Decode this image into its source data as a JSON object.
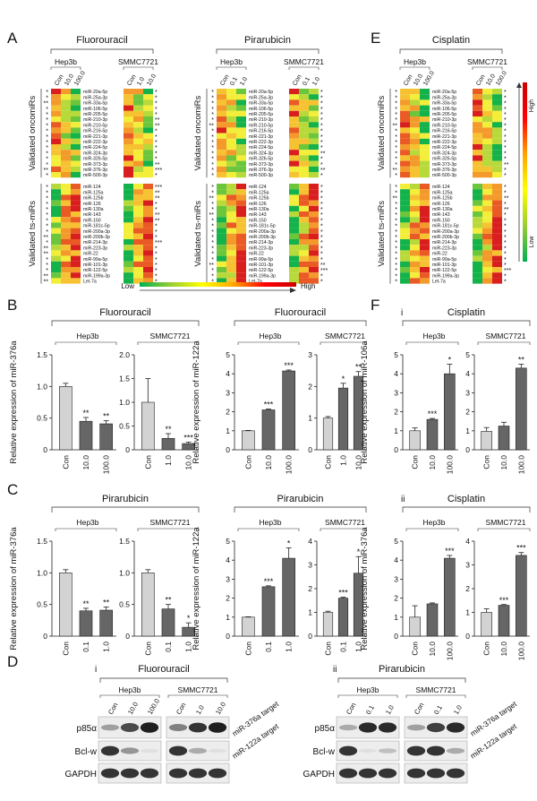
{
  "panels": {
    "A": "A",
    "B": "B",
    "C": "C",
    "D": "D",
    "E": "E",
    "F": "F"
  },
  "heatmap": {
    "row_group_labels": [
      "Validated oncomiRs",
      "Validated ts-miRs"
    ],
    "oncomirs": [
      "miR-20a-5p",
      "miR-25a-3p",
      "miR-33a-5p",
      "miR-106-5p",
      "miR-205-5p",
      "miR-210-3p",
      "miR-210-5p",
      "miR-216-5p",
      "miR-221-3p",
      "miR-222-3p",
      "miR-224-5p",
      "miR-324-3p",
      "miR-326-5p",
      "miR-373-3p",
      "miR-376-3p",
      "miR-500-3p"
    ],
    "tsmirs": [
      "miR-124",
      "miR-125a",
      "miR-125b",
      "miR-126",
      "miR-130a",
      "miR-143",
      "miR-150",
      "miR-181c-5p",
      "miR-200a-3p",
      "miR-200b-3p",
      "miR-214-3p",
      "miR-223-3p",
      "miR-22",
      "miR-99a-5p",
      "miR-101-3p",
      "miR-122-5p",
      "miR-199a-3p",
      "Let-7a"
    ],
    "legend": {
      "low": "Low",
      "high": "High",
      "gradient_colors": [
        "#00b050",
        "#9acd32",
        "#ffff00",
        "#ffa500",
        "#ff0000",
        "#cc0000"
      ]
    },
    "blocks": [
      {
        "id": "fluorouracil",
        "drug": "Fluorouracil",
        "lines": [
          {
            "name": "Hep3b",
            "conc": [
              "Con",
              "10.0",
              "100.0"
            ]
          },
          {
            "name": "SMMC7721",
            "conc": [
              "Con",
              "1.0",
              "10.0"
            ]
          }
        ],
        "onco_left": [
          "*",
          "*",
          "**",
          "*",
          "*",
          "*",
          "*",
          "*",
          "*",
          "*",
          "*",
          "*",
          "*",
          "*",
          "**",
          "*"
        ],
        "onco_right": [
          "*",
          "*",
          "*",
          "*",
          "*",
          "**",
          "**",
          "*",
          "*",
          "*",
          "*",
          "*",
          "*",
          "**",
          "***",
          "*"
        ],
        "ts_left": [
          "*",
          "*",
          "*",
          "*",
          "*",
          "*",
          "*",
          "*",
          "*",
          "**",
          "*",
          "**",
          "**",
          "*",
          "*",
          "*",
          "**",
          "**"
        ],
        "ts_right": [
          "***",
          "**",
          "**",
          "*",
          "*",
          "**",
          "**",
          "*",
          "*",
          "*",
          "***",
          "*",
          "*",
          "*",
          "*",
          "*",
          "*",
          "*"
        ]
      },
      {
        "id": "pirarubicin",
        "drug": "Pirarubicin",
        "lines": [
          {
            "name": "Hep3b",
            "conc": [
              "Con",
              "0.1",
              "1.0"
            ]
          },
          {
            "name": "SMMC7721",
            "conc": [
              "Con",
              "0.1",
              "1.0"
            ]
          }
        ],
        "onco_left": [
          "*",
          "*",
          "*",
          "*",
          "*",
          "*",
          "**",
          "*",
          "*",
          "*",
          "*",
          "*",
          "*",
          "*",
          "*",
          "*"
        ],
        "onco_right": [
          "*",
          "*",
          "*",
          "*",
          "*",
          "*",
          "*",
          "*",
          "*",
          "*",
          "*",
          "**",
          "*",
          "*",
          "**",
          "*"
        ],
        "ts_left": [
          "*",
          "*",
          "**",
          "*",
          "*",
          "**",
          "*",
          "*",
          "*",
          "*",
          "*",
          "*",
          "*",
          "*",
          "**",
          "*",
          "*",
          "*"
        ],
        "ts_right": [
          "*",
          "*",
          "*",
          "*",
          "*",
          "*",
          "*",
          "*",
          "*",
          "*",
          "*",
          "*",
          "*",
          "*",
          "**",
          "***",
          "*",
          "*"
        ]
      },
      {
        "id": "cisplatin",
        "drug": "Cisplatin",
        "lines": [
          {
            "name": "Hep3b",
            "conc": [
              "Con",
              "10.0",
              "100.0"
            ]
          },
          {
            "name": "SMMC7721",
            "conc": [
              "Con",
              "10.0",
              "100.0"
            ]
          }
        ],
        "onco_left": [
          "*",
          "*",
          "*",
          "*",
          "*",
          "*",
          "**",
          "*",
          "*",
          "*",
          "*",
          "*",
          "*",
          "*",
          "**",
          "*"
        ],
        "onco_right": [
          "*",
          "*",
          "*",
          "*",
          "*",
          "*",
          "*",
          "*",
          "*",
          "*",
          "*",
          "*",
          "*",
          "**",
          "*",
          "*"
        ],
        "ts_left": [
          "*",
          "*",
          "**",
          "*",
          "*",
          "*",
          "*",
          "*",
          "*",
          "*",
          "*",
          "*",
          "*",
          "*",
          "*",
          "*",
          "*",
          "*"
        ],
        "ts_right": [
          "*",
          "*",
          "**",
          "*",
          "**",
          "*",
          "*",
          "*",
          "*",
          "*",
          "*",
          "*",
          "*",
          "*",
          "*",
          "***",
          "*",
          "*"
        ]
      }
    ]
  },
  "chart_data": [
    {
      "type": "bar",
      "panel": "B",
      "title": "Fluorouracil",
      "ylabel": "Relative  expression of miR-376a",
      "groups": [
        {
          "name": "Hep3b",
          "categories": [
            "Con",
            "10.0",
            "100.0"
          ],
          "values": [
            1.0,
            0.45,
            0.41
          ],
          "errors": [
            0.05,
            0.06,
            0.05
          ],
          "sig": [
            "",
            "**",
            "**"
          ],
          "ylim": [
            0,
            1.5
          ],
          "ticks": [
            "0",
            "0.5",
            "1.0",
            "1.5"
          ]
        },
        {
          "name": "SMMC7721",
          "categories": [
            "Con",
            "1.0",
            "10.0"
          ],
          "values": [
            1.0,
            0.24,
            0.13
          ],
          "errors": [
            0.5,
            0.1,
            0.03
          ],
          "sig": [
            "",
            "**",
            "***"
          ],
          "ylim": [
            0,
            2.0
          ],
          "ticks": [
            "0",
            "0.5",
            "1.0",
            "1.5",
            "2.0"
          ]
        }
      ]
    },
    {
      "type": "bar",
      "panel": "B",
      "title": "Fluorouracil",
      "ylabel": "Relative  expression of miR-122a",
      "groups": [
        {
          "name": "Hep3b",
          "categories": [
            "Con",
            "10.0",
            "100.0"
          ],
          "values": [
            1.0,
            2.1,
            4.15
          ],
          "errors": [
            0.02,
            0.05,
            0.05
          ],
          "sig": [
            "",
            "***",
            "***"
          ],
          "ylim": [
            0,
            5
          ],
          "ticks": [
            "0",
            "1",
            "2",
            "3",
            "4",
            "5"
          ]
        },
        {
          "name": "SMMC7721",
          "categories": [
            "Con",
            "1.0",
            "10.0"
          ],
          "values": [
            1.0,
            1.95,
            2.32
          ],
          "errors": [
            0.05,
            0.15,
            0.15
          ],
          "sig": [
            "",
            "*",
            "**"
          ],
          "ylim": [
            0,
            3
          ],
          "ticks": [
            "0",
            "1",
            "2",
            "3"
          ]
        }
      ]
    },
    {
      "type": "bar",
      "panel": "C",
      "title": "Pirarubicin",
      "ylabel": "Relative  expression of miR-376a",
      "groups": [
        {
          "name": "Hep3b",
          "categories": [
            "Con",
            "0.1",
            "1.0"
          ],
          "values": [
            1.0,
            0.4,
            0.41
          ],
          "errors": [
            0.05,
            0.04,
            0.05
          ],
          "sig": [
            "",
            "**",
            "**"
          ],
          "ylim": [
            0,
            1.5
          ],
          "ticks": [
            "0",
            "0.5",
            "1.0",
            "1.5"
          ]
        },
        {
          "name": "SMMC7721",
          "categories": [
            "Con",
            "0.1",
            "1.0"
          ],
          "values": [
            1.0,
            0.43,
            0.14
          ],
          "errors": [
            0.05,
            0.07,
            0.07
          ],
          "sig": [
            "",
            "**",
            "*"
          ],
          "ylim": [
            0,
            1.5
          ],
          "ticks": [
            "0",
            "0.5",
            "1.0",
            "1.5"
          ]
        }
      ]
    },
    {
      "type": "bar",
      "panel": "C",
      "title": "Pirarubicin",
      "ylabel": "Relative  expression of miR-122a",
      "groups": [
        {
          "name": "Hep3b",
          "categories": [
            "Con",
            "0.1",
            "1.0"
          ],
          "values": [
            1.0,
            2.6,
            4.1
          ],
          "errors": [
            0.02,
            0.05,
            0.55
          ],
          "sig": [
            "",
            "***",
            "*"
          ],
          "ylim": [
            0,
            5
          ],
          "ticks": [
            "0",
            "1",
            "2",
            "3",
            "4",
            "5"
          ]
        },
        {
          "name": "SMMC7721",
          "categories": [
            "Con",
            "0.1",
            "1.0"
          ],
          "values": [
            1.0,
            1.6,
            2.65
          ],
          "errors": [
            0.05,
            0.04,
            0.7
          ],
          "sig": [
            "",
            "***",
            "*"
          ],
          "ylim": [
            0,
            4
          ],
          "ticks": [
            "0",
            "1",
            "2",
            "3",
            "4"
          ]
        }
      ]
    },
    {
      "type": "bar",
      "panel": "F",
      "sub": "i",
      "title": "Cisplatin",
      "ylabel": "Relative  expression of miR-106a",
      "groups": [
        {
          "name": "Hep3b",
          "categories": [
            "Con",
            "10.0",
            "100.0"
          ],
          "values": [
            1.0,
            1.6,
            4.0
          ],
          "errors": [
            0.15,
            0.05,
            0.5
          ],
          "sig": [
            "",
            "***",
            "*"
          ],
          "ylim": [
            0,
            5
          ],
          "ticks": [
            "0",
            "1",
            "2",
            "3",
            "4",
            "5"
          ]
        },
        {
          "name": "SMMC7721",
          "categories": [
            "Con",
            "10.0",
            "100.0"
          ],
          "values": [
            0.97,
            1.25,
            4.3
          ],
          "errors": [
            0.2,
            0.2,
            0.2
          ],
          "sig": [
            "",
            "",
            "**"
          ],
          "ylim": [
            0,
            5
          ],
          "ticks": [
            "0",
            "1",
            "2",
            "3",
            "4",
            "5"
          ]
        }
      ]
    },
    {
      "type": "bar",
      "panel": "F",
      "sub": "ii",
      "title": "Cisplatin",
      "ylabel": "Relative  expression of miR-376a",
      "groups": [
        {
          "name": "Hep3b",
          "categories": [
            "Con",
            "10.0",
            "100.0"
          ],
          "values": [
            1.0,
            1.7,
            4.1
          ],
          "errors": [
            0.6,
            0.05,
            0.15
          ],
          "sig": [
            "",
            "",
            "***"
          ],
          "ylim": [
            0,
            5
          ],
          "ticks": [
            "0",
            "1",
            "2",
            "3",
            "4",
            "5"
          ]
        },
        {
          "name": "SMMC7721",
          "categories": [
            "Con",
            "10.0",
            "100.0"
          ],
          "values": [
            1.0,
            1.3,
            3.4
          ],
          "errors": [
            0.15,
            0.03,
            0.12
          ],
          "sig": [
            "",
            "***",
            "***"
          ],
          "ylim": [
            0,
            4
          ],
          "ticks": [
            "0",
            "1",
            "2",
            "3",
            "4"
          ]
        }
      ]
    }
  ],
  "western": [
    {
      "sub": "i",
      "drug": "Fluorouracil",
      "lines": [
        {
          "name": "Hep3b",
          "conc": [
            "Con",
            "10.0",
            "100.0"
          ]
        },
        {
          "name": "SMMC7721",
          "conc": [
            "Con",
            "1.0",
            "10.0"
          ]
        }
      ],
      "rows": [
        "p85α",
        "Bcl-w",
        "GAPDH"
      ],
      "intensity": [
        [
          0.35,
          0.75,
          0.95,
          0.5,
          0.85,
          0.95
        ],
        [
          0.85,
          0.4,
          0.05,
          0.85,
          0.3,
          0.05
        ],
        [
          0.85,
          0.85,
          0.85,
          0.85,
          0.85,
          0.85
        ]
      ]
    },
    {
      "sub": "ii",
      "drug": "Pirarubicin",
      "lines": [
        {
          "name": "Hep3b",
          "conc": [
            "Con",
            "0.1",
            "1.0"
          ]
        },
        {
          "name": "SMMC7721",
          "conc": [
            "Con",
            "0.1",
            "1.0"
          ]
        }
      ],
      "rows": [
        "p85α",
        "Bcl-w",
        "GAPDH"
      ],
      "intensity": [
        [
          0.3,
          0.9,
          0.9,
          0.35,
          0.8,
          0.9
        ],
        [
          0.85,
          0.05,
          0.2,
          0.85,
          0.85,
          0.3
        ],
        [
          0.85,
          0.85,
          0.85,
          0.85,
          0.85,
          0.85
        ]
      ]
    }
  ],
  "targets": [
    "miR-376a target",
    "miR-122a target"
  ]
}
